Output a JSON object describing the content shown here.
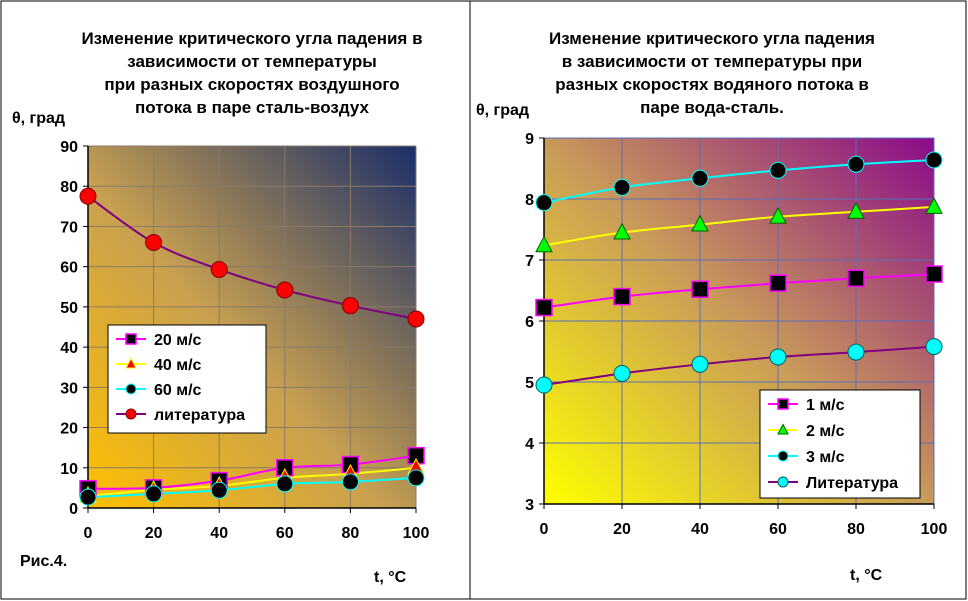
{
  "chart_data": [
    {
      "type": "line",
      "title": [
        "Изменение критического угла падения в",
        "зависимости от температуры",
        "при разных скоростях воздушного",
        "потока в паре сталь-воздух"
      ],
      "ylabel": "θ, град",
      "xlabel": "t, °C",
      "figure_label": "Рис.4.",
      "x": [
        0,
        20,
        40,
        60,
        80,
        100
      ],
      "xlim": [
        0,
        100
      ],
      "ylim": [
        0,
        90
      ],
      "yticks": [
        0,
        10,
        20,
        30,
        40,
        50,
        60,
        70,
        80,
        90
      ],
      "xticks": [
        0,
        20,
        40,
        60,
        80,
        100
      ],
      "grid": true,
      "legend_position": "lower-left",
      "series": [
        {
          "name": "20 м/с",
          "values": [
            4.8,
            5.0,
            6.8,
            10.0,
            10.8,
            13.0
          ],
          "color": "#ff00ff",
          "marker": "square"
        },
        {
          "name": "40 м/с",
          "values": [
            3.0,
            4.5,
            5.5,
            7.5,
            8.5,
            10.0
          ],
          "color": "#ffff00",
          "marker": "triangle"
        },
        {
          "name": "60 м/с",
          "values": [
            2.7,
            3.5,
            4.4,
            6.0,
            6.5,
            7.5
          ],
          "color": "#00ffff",
          "marker": "circle-black"
        },
        {
          "name": "литература",
          "values": [
            77.5,
            66.0,
            59.3,
            54.2,
            50.3,
            47.0
          ],
          "color": "#800080",
          "marker": "circle-red"
        }
      ]
    },
    {
      "type": "line",
      "title": [
        "Изменение критического угла падения",
        "в зависимости от температуры при",
        "разных скоростях водяного потока в",
        "паре вода-сталь."
      ],
      "ylabel": "θ, град",
      "xlabel": "t, °C",
      "x": [
        0,
        20,
        40,
        60,
        80,
        100
      ],
      "xlim": [
        0,
        100
      ],
      "ylim": [
        3,
        9
      ],
      "yticks": [
        3,
        4,
        5,
        6,
        7,
        8,
        9
      ],
      "xticks": [
        0,
        20,
        40,
        60,
        80,
        100
      ],
      "grid": true,
      "legend_position": "lower-right",
      "series": [
        {
          "name": "1 м/с",
          "values": [
            6.22,
            6.4,
            6.52,
            6.62,
            6.7,
            6.77
          ],
          "color": "#ff00ff",
          "marker": "square"
        },
        {
          "name": "2 м/с",
          "values": [
            7.24,
            7.45,
            7.58,
            7.71,
            7.79,
            7.87
          ],
          "color": "#ffff00",
          "marker": "triangle-green"
        },
        {
          "name": "3 м/с",
          "values": [
            7.94,
            8.19,
            8.34,
            8.47,
            8.57,
            8.64
          ],
          "color": "#00ffff",
          "marker": "circle-black"
        },
        {
          "name": "Литература",
          "values": [
            4.95,
            5.14,
            5.29,
            5.41,
            5.49,
            5.58
          ],
          "color": "#800080",
          "marker": "circle-cyan"
        }
      ]
    }
  ]
}
